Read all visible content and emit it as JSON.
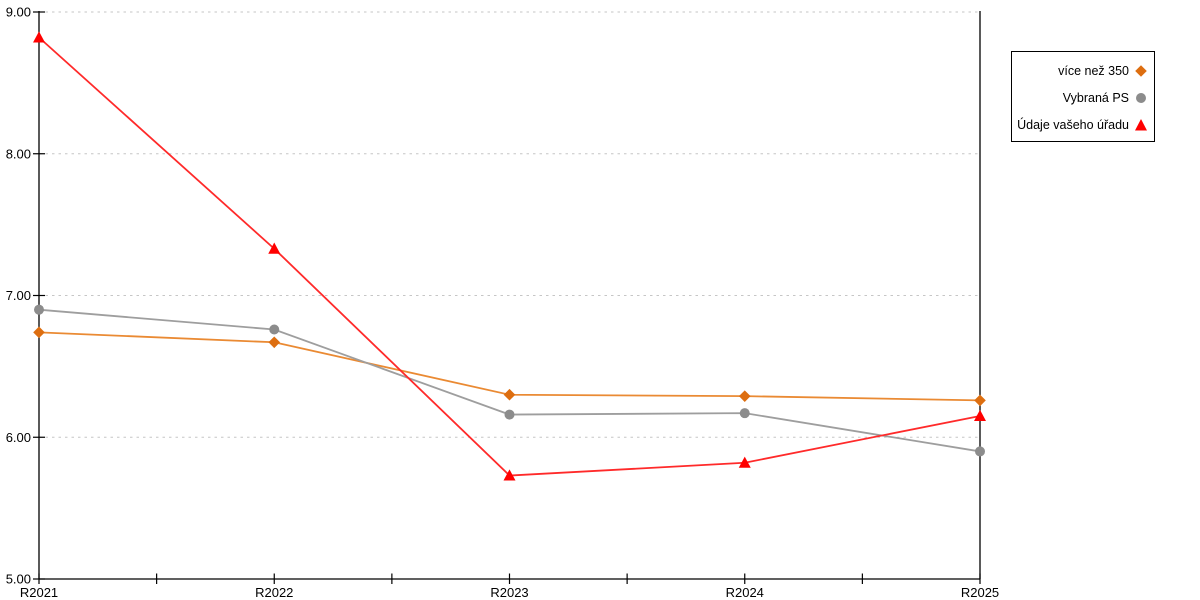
{
  "chart_data": {
    "type": "line",
    "title": "",
    "xlabel": "",
    "ylabel": "",
    "categories": [
      "R2021",
      "R2022",
      "R2023",
      "R2024",
      "R2025"
    ],
    "series": [
      {
        "name": "více než 350",
        "marker": "diamond",
        "marker_color": "#DD6E10",
        "line_color": "#EA8A33",
        "values": [
          6.74,
          6.67,
          6.3,
          6.29,
          6.26
        ]
      },
      {
        "name": "Vybraná PS",
        "marker": "circle",
        "marker_color": "#8C8C8C",
        "line_color": "#9E9E9E",
        "values": [
          6.9,
          6.76,
          6.16,
          6.17,
          5.9
        ]
      },
      {
        "name": "Údaje vašeho úřadu",
        "marker": "triangle",
        "marker_color": "#FF0000",
        "line_color": "#FF2A2A",
        "values": [
          8.82,
          7.33,
          5.73,
          5.82,
          6.15
        ]
      }
    ],
    "ylim": [
      5,
      9
    ],
    "ytick_labels": [
      "5.00",
      "6.00",
      "7.00",
      "8.00",
      "9.00"
    ],
    "x_minor_ticks": true,
    "grid": "horizontal-dotted",
    "legend_position": "right",
    "colors": {
      "background": "#FFFFFF",
      "axis": "#000000",
      "grid": "#C6C6C6",
      "legend_border": "#000000",
      "text": "#000000"
    }
  }
}
